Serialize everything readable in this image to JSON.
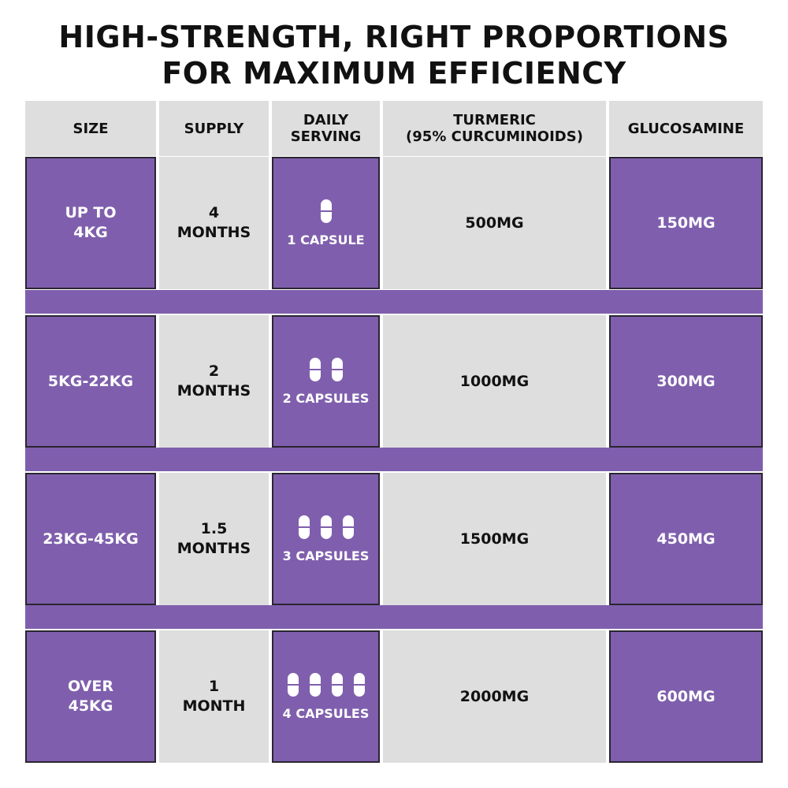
{
  "title_line1": "HIGH-STRENGTH, RIGHT PROPORTIONS",
  "title_line2": "FOR MAXIMUM EFFICIENCY",
  "headers": {
    "size": "SIZE",
    "supply": "SUPPLY",
    "serving_line1": "DAILY",
    "serving_line2": "SERVING",
    "turmeric_line1": "TURMERIC",
    "turmeric_line2": "(95% CURCUMINOIDS)",
    "glucosamine": "GLUCOSAMINE"
  },
  "rows": [
    {
      "size_line1": "UP TO",
      "size_line2": "4KG",
      "supply_line1": "4",
      "supply_line2": "MONTHS",
      "capsules": 1,
      "serving": "1 CAPSULE",
      "turmeric": "500MG",
      "glucosamine": "150MG"
    },
    {
      "size_line1": "5KG-22KG",
      "size_line2": "",
      "supply_line1": "2",
      "supply_line2": "MONTHS",
      "capsules": 2,
      "serving": "2 CAPSULES",
      "turmeric": "1000MG",
      "glucosamine": "300MG"
    },
    {
      "size_line1": "23KG-45KG",
      "size_line2": "",
      "supply_line1": "1.5",
      "supply_line2": "MONTHS",
      "capsules": 3,
      "serving": "3 CAPSULES",
      "turmeric": "1500MG",
      "glucosamine": "450MG"
    },
    {
      "size_line1": "OVER",
      "size_line2": "45KG",
      "supply_line1": "1",
      "supply_line2": "MONTH",
      "capsules": 4,
      "serving": "4 CAPSULES",
      "turmeric": "2000MG",
      "glucosamine": "600MG"
    }
  ],
  "colors": {
    "purple": "#7f5fad",
    "gray": "#dedede",
    "text_dark": "#111111",
    "text_light": "#ffffff"
  },
  "icons": {
    "capsule": "capsule-icon"
  }
}
